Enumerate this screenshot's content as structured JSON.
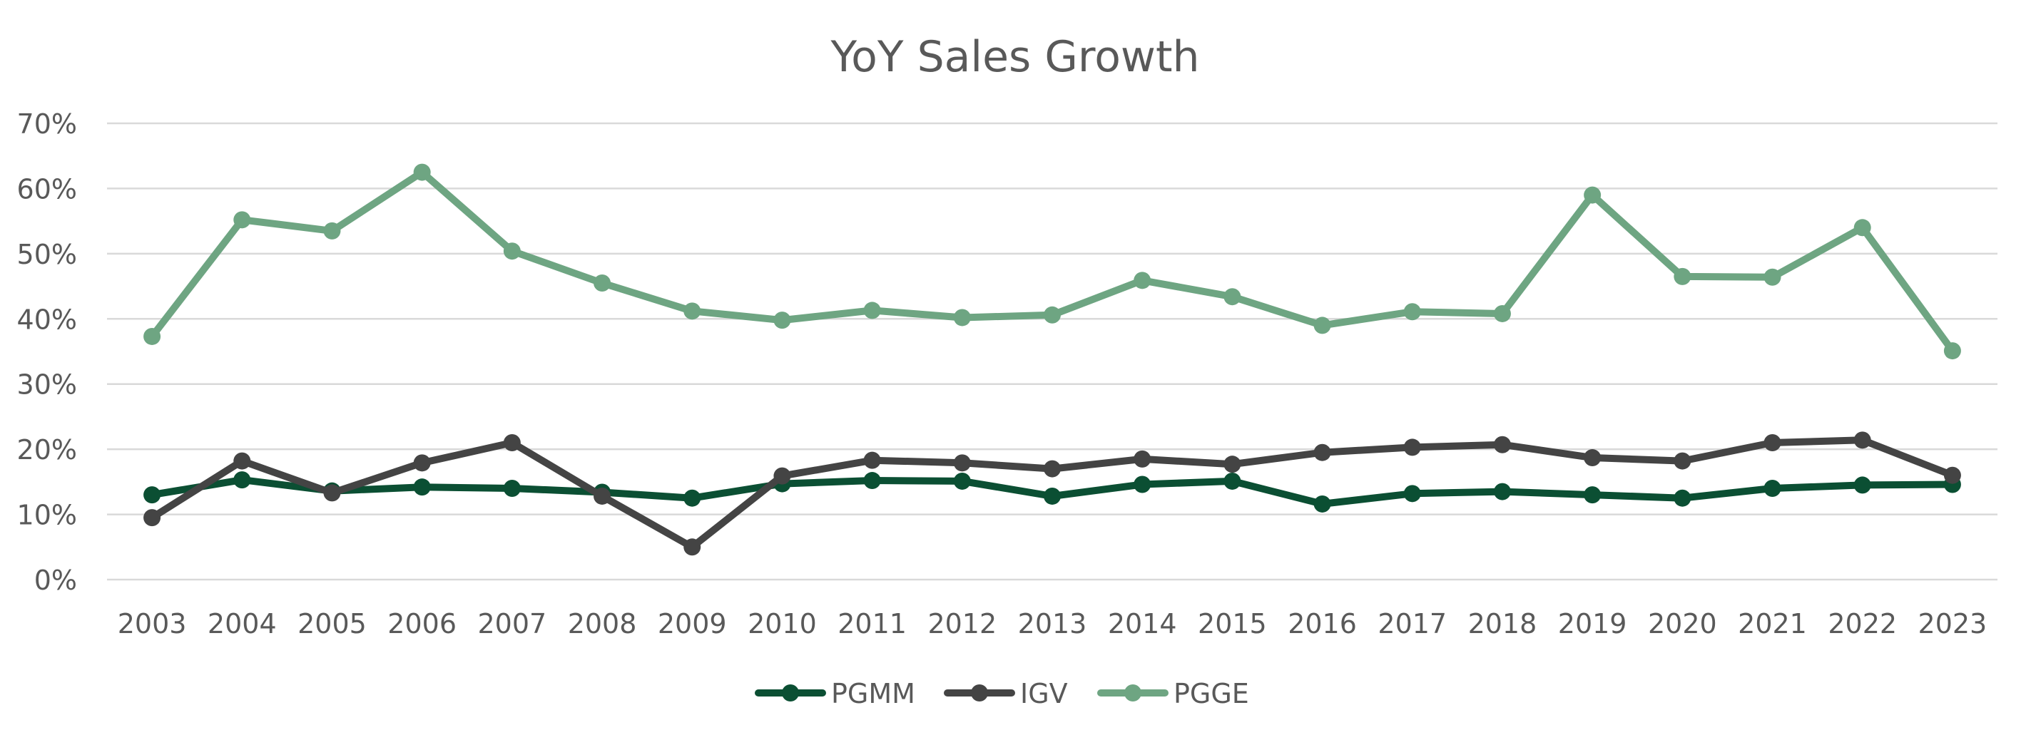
{
  "chart_data": {
    "type": "line",
    "title": "YoY Sales Growth",
    "xlabel": "",
    "ylabel": "",
    "categories": [
      "2003",
      "2004",
      "2005",
      "2006",
      "2007",
      "2008",
      "2009",
      "2010",
      "2011",
      "2012",
      "2013",
      "2014",
      "2015",
      "2016",
      "2017",
      "2018",
      "2019",
      "2020",
      "2021",
      "2022",
      "2023"
    ],
    "y_ticks": [
      "0%",
      "10%",
      "20%",
      "30%",
      "40%",
      "50%",
      "60%",
      "70%"
    ],
    "ylim": [
      0,
      70
    ],
    "y_unit": "%",
    "grid": true,
    "legend_position": "bottom-center",
    "markers": true,
    "series": [
      {
        "name": "PGMM",
        "color": "#0b4f33",
        "values": [
          13.0,
          15.3,
          13.6,
          14.2,
          14.0,
          13.4,
          12.5,
          14.7,
          15.2,
          15.1,
          12.8,
          14.6,
          15.1,
          11.6,
          13.2,
          13.5,
          13.0,
          12.5,
          14.0,
          14.5,
          14.6
        ]
      },
      {
        "name": "IGV",
        "color": "#444444",
        "values": [
          9.5,
          18.2,
          13.3,
          17.9,
          21.0,
          12.8,
          5.0,
          15.9,
          18.3,
          17.9,
          17.0,
          18.5,
          17.7,
          19.5,
          20.3,
          20.7,
          18.7,
          18.2,
          21.0,
          21.4,
          16.0
        ]
      },
      {
        "name": "PGGE",
        "color": "#6ea582",
        "values": [
          37.3,
          55.2,
          53.5,
          62.5,
          50.4,
          45.5,
          41.2,
          39.8,
          41.3,
          40.2,
          40.6,
          45.9,
          43.4,
          39.0,
          41.1,
          40.8,
          59.0,
          46.5,
          46.4,
          54.0,
          35.1
        ]
      }
    ]
  }
}
